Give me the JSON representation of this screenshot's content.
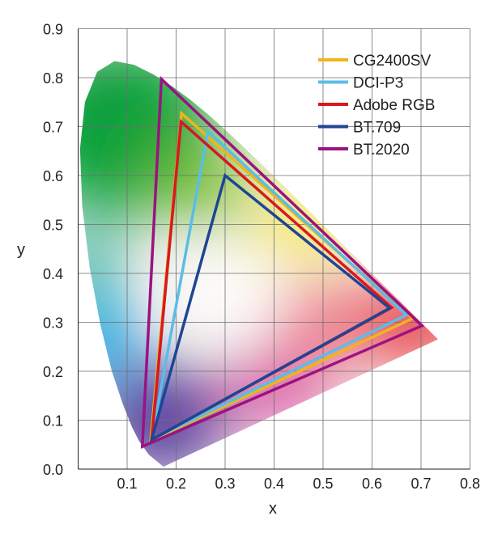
{
  "chart_data": {
    "type": "scatter",
    "title": "",
    "xlabel": "x",
    "ylabel": "y",
    "xlim": [
      0,
      0.8
    ],
    "ylim": [
      0,
      0.9
    ],
    "xticks": [
      "0.1",
      "0.2",
      "0.3",
      "0.4",
      "0.5",
      "0.6",
      "0.7",
      "0.8"
    ],
    "yticks": [
      "0.0",
      "0.1",
      "0.2",
      "0.3",
      "0.4",
      "0.5",
      "0.6",
      "0.7",
      "0.8",
      "0.9"
    ],
    "grid": true,
    "legend_position": "top-right",
    "spectral_locus": [
      [
        0.1741,
        0.005
      ],
      [
        0.144,
        0.0297
      ],
      [
        0.1241,
        0.0578
      ],
      [
        0.1096,
        0.0868
      ],
      [
        0.0913,
        0.1327
      ],
      [
        0.0687,
        0.2007
      ],
      [
        0.0454,
        0.295
      ],
      [
        0.0235,
        0.4127
      ],
      [
        0.0082,
        0.5384
      ],
      [
        0.0039,
        0.6548
      ],
      [
        0.0139,
        0.7502
      ],
      [
        0.0389,
        0.812
      ],
      [
        0.0743,
        0.8338
      ],
      [
        0.1142,
        0.8262
      ],
      [
        0.1547,
        0.8059
      ],
      [
        0.1929,
        0.7816
      ],
      [
        0.2296,
        0.7543
      ],
      [
        0.2658,
        0.7243
      ],
      [
        0.3016,
        0.6923
      ],
      [
        0.3373,
        0.6589
      ],
      [
        0.3731,
        0.6245
      ],
      [
        0.4441,
        0.5547
      ],
      [
        0.5125,
        0.4866
      ],
      [
        0.5752,
        0.4242
      ],
      [
        0.627,
        0.3725
      ],
      [
        0.6915,
        0.3083
      ],
      [
        0.7347,
        0.2653
      ]
    ],
    "series": [
      {
        "name": "CG2400SV",
        "color": "#f0b41c",
        "points": [
          [
            0.683,
            0.308
          ],
          [
            0.211,
            0.727
          ],
          [
            0.148,
            0.058
          ]
        ]
      },
      {
        "name": "DCI-P3",
        "color": "#5bbde6",
        "points": [
          [
            0.67,
            0.315
          ],
          [
            0.265,
            0.69
          ],
          [
            0.15,
            0.06
          ]
        ]
      },
      {
        "name": "Adobe RGB",
        "color": "#d7191f",
        "points": [
          [
            0.64,
            0.33
          ],
          [
            0.21,
            0.71
          ],
          [
            0.15,
            0.06
          ]
        ]
      },
      {
        "name": "BT.709",
        "color": "#1f4594",
        "points": [
          [
            0.636,
            0.329
          ],
          [
            0.3,
            0.6
          ],
          [
            0.15,
            0.06
          ]
        ]
      },
      {
        "name": "BT.2020",
        "color": "#9b1282",
        "points": [
          [
            0.702,
            0.293
          ],
          [
            0.17,
            0.797
          ],
          [
            0.131,
            0.046
          ]
        ]
      }
    ]
  }
}
